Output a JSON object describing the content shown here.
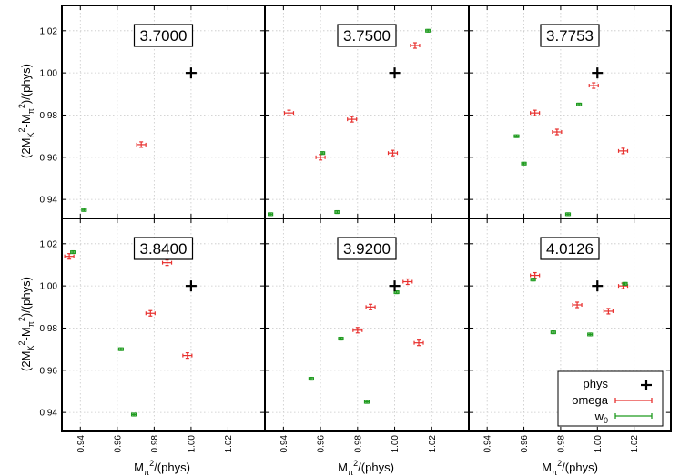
{
  "chart_data": {
    "type": "scatter",
    "ylabel": "(2M_K²-M_π²)/(phys)",
    "xlabel": "M_π²/(phys)",
    "xlim": [
      0.93,
      1.04
    ],
    "ylim": [
      0.931,
      1.032
    ],
    "x_ticks": [
      "0.94",
      "0.96",
      "0.98",
      "1.00",
      "1.02"
    ],
    "y_ticks": [
      "0.94",
      "0.96",
      "0.98",
      "1.00",
      "1.02"
    ],
    "grid": true,
    "legend": {
      "placement": "bottom-right",
      "entries": [
        "phys",
        "omega",
        "w0"
      ]
    },
    "series_colors": {
      "phys": "#000000",
      "omega": "#e8312f",
      "w0": "#1f9b1f"
    },
    "panels": [
      {
        "title": "3.7000",
        "phys": [
          [
            1.0,
            1.0
          ]
        ],
        "omega": [
          [
            0.973,
            0.966
          ]
        ],
        "w0": [
          [
            0.942,
            0.935
          ]
        ]
      },
      {
        "title": "3.7500",
        "phys": [
          [
            1.0,
            1.0
          ]
        ],
        "omega": [
          [
            0.943,
            0.981
          ],
          [
            0.96,
            0.96
          ],
          [
            0.977,
            0.978
          ],
          [
            0.999,
            0.962
          ],
          [
            1.011,
            1.013
          ]
        ],
        "w0": [
          [
            0.933,
            0.933
          ],
          [
            0.961,
            0.962
          ],
          [
            0.969,
            0.934
          ],
          [
            1.018,
            1.02
          ]
        ]
      },
      {
        "title": "3.7753",
        "phys": [
          [
            1.0,
            1.0
          ]
        ],
        "omega": [
          [
            0.966,
            0.981
          ],
          [
            0.978,
            0.972
          ],
          [
            0.998,
            0.994
          ],
          [
            1.014,
            0.963
          ]
        ],
        "w0": [
          [
            0.956,
            0.97
          ],
          [
            0.96,
            0.957
          ],
          [
            0.984,
            0.933
          ],
          [
            0.99,
            0.985
          ]
        ]
      },
      {
        "title": "3.8400",
        "phys": [
          [
            1.0,
            1.0
          ]
        ],
        "omega": [
          [
            0.934,
            1.014
          ],
          [
            0.978,
            0.987
          ],
          [
            0.987,
            1.011
          ],
          [
            0.998,
            0.967
          ]
        ],
        "w0": [
          [
            0.936,
            1.016
          ],
          [
            0.962,
            0.97
          ],
          [
            0.969,
            0.939
          ],
          [
            0.99,
            1.015
          ]
        ]
      },
      {
        "title": "3.9200",
        "phys": [
          [
            1.0,
            1.0
          ]
        ],
        "omega": [
          [
            0.98,
            0.979
          ],
          [
            0.987,
            0.99
          ],
          [
            1.007,
            1.002
          ],
          [
            1.013,
            0.973
          ]
        ],
        "w0": [
          [
            0.955,
            0.956
          ],
          [
            0.971,
            0.975
          ],
          [
            0.985,
            0.945
          ],
          [
            1.001,
            0.997
          ]
        ]
      },
      {
        "title": "4.0126",
        "phys": [
          [
            1.0,
            1.0
          ]
        ],
        "omega": [
          [
            0.966,
            1.005
          ],
          [
            0.989,
            0.991
          ],
          [
            1.006,
            0.988
          ],
          [
            1.014,
            1.0
          ]
        ],
        "w0": [
          [
            0.965,
            1.003
          ],
          [
            0.976,
            0.978
          ],
          [
            0.996,
            0.977
          ],
          [
            1.015,
            1.001
          ]
        ]
      }
    ]
  }
}
